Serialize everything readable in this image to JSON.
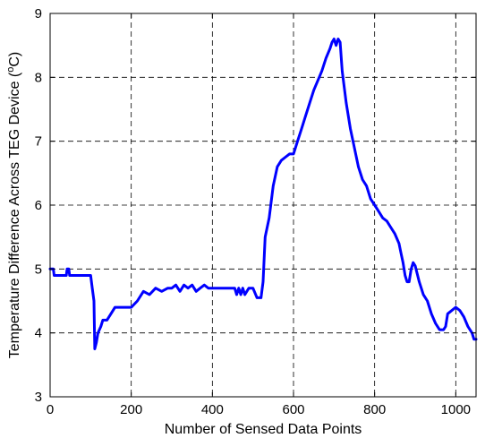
{
  "chart_data": {
    "type": "line",
    "xlabel": "Number of Sensed Data Points",
    "ylabel_main": "Temperature Difference Across TEG Device (",
    "ylabel_sup": "o",
    "ylabel_unit": "C)",
    "xlim": [
      0,
      1050
    ],
    "ylim": [
      3,
      9
    ],
    "xticks": [
      0,
      200,
      400,
      600,
      800,
      1000
    ],
    "yticks": [
      3,
      4,
      5,
      6,
      7,
      8,
      9
    ],
    "grid": true,
    "grid_style": "dashed",
    "series": [
      {
        "color": "#0000ff",
        "x": [
          0,
          8,
          10,
          40,
          42,
          46,
          48,
          100,
          104,
          108,
          110,
          114,
          118,
          125,
          130,
          140,
          150,
          160,
          175,
          190,
          200,
          215,
          230,
          245,
          260,
          275,
          290,
          300,
          310,
          320,
          330,
          340,
          350,
          360,
          370,
          380,
          390,
          400,
          420,
          440,
          455,
          460,
          465,
          470,
          475,
          480,
          490,
          500,
          510,
          520,
          525,
          530,
          540,
          550,
          560,
          570,
          580,
          590,
          600,
          610,
          620,
          630,
          640,
          650,
          660,
          670,
          680,
          690,
          695,
          700,
          705,
          710,
          715,
          720,
          730,
          740,
          750,
          760,
          770,
          780,
          790,
          800,
          810,
          820,
          830,
          840,
          850,
          860,
          865,
          870,
          875,
          880,
          885,
          890,
          895,
          900,
          910,
          920,
          930,
          940,
          950,
          960,
          970,
          975,
          980,
          990,
          1000,
          1010,
          1020,
          1030,
          1040,
          1045,
          1050
        ],
        "values": [
          5.0,
          5.0,
          4.9,
          4.9,
          5.0,
          5.0,
          4.9,
          4.9,
          4.7,
          4.5,
          3.75,
          3.85,
          4.0,
          4.1,
          4.2,
          4.2,
          4.3,
          4.4,
          4.4,
          4.4,
          4.4,
          4.5,
          4.65,
          4.6,
          4.7,
          4.65,
          4.7,
          4.7,
          4.75,
          4.65,
          4.75,
          4.7,
          4.75,
          4.65,
          4.7,
          4.75,
          4.7,
          4.7,
          4.7,
          4.7,
          4.7,
          4.6,
          4.7,
          4.6,
          4.7,
          4.6,
          4.7,
          4.7,
          4.55,
          4.55,
          4.8,
          5.5,
          5.8,
          6.3,
          6.6,
          6.7,
          6.75,
          6.8,
          6.8,
          7.0,
          7.2,
          7.4,
          7.6,
          7.8,
          7.95,
          8.1,
          8.3,
          8.45,
          8.55,
          8.6,
          8.5,
          8.6,
          8.55,
          8.1,
          7.6,
          7.2,
          6.9,
          6.6,
          6.4,
          6.3,
          6.1,
          6.0,
          5.9,
          5.8,
          5.75,
          5.65,
          5.55,
          5.4,
          5.25,
          5.1,
          4.9,
          4.8,
          4.8,
          5.0,
          5.1,
          5.05,
          4.8,
          4.6,
          4.5,
          4.3,
          4.15,
          4.05,
          4.05,
          4.1,
          4.3,
          4.35,
          4.4,
          4.35,
          4.25,
          4.1,
          4.0,
          3.9,
          3.9
        ]
      }
    ]
  }
}
